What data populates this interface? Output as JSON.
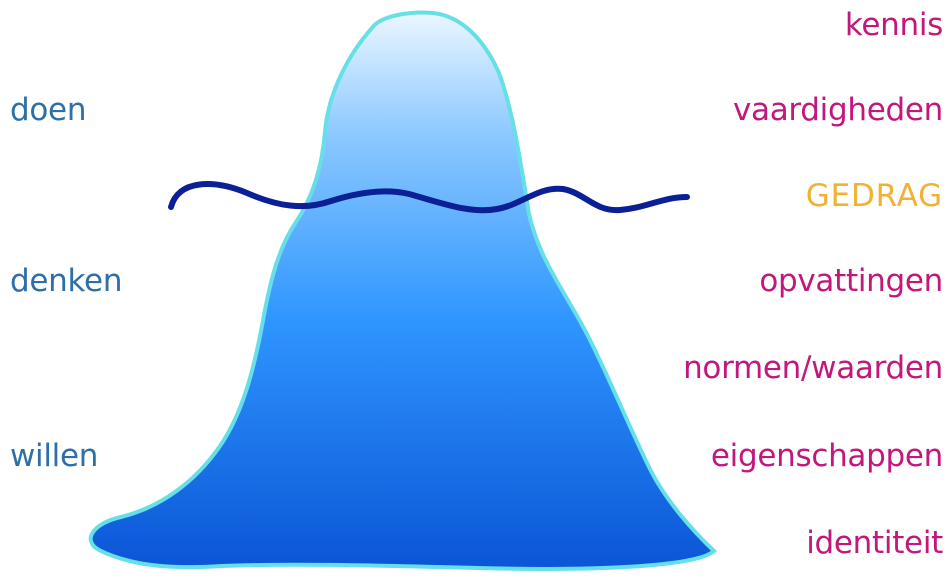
{
  "diagram": {
    "left_labels": [
      {
        "text": "doen"
      },
      {
        "text": "denken"
      },
      {
        "text": "willen"
      }
    ],
    "right_labels": [
      {
        "text": "kennis"
      },
      {
        "text": "vaardigheden"
      },
      {
        "text": "GEDRAG"
      },
      {
        "text": "opvattingen"
      },
      {
        "text": "normen/waarden"
      },
      {
        "text": "eigenschappen"
      },
      {
        "text": "identiteit"
      }
    ],
    "colors": {
      "left_text": "#2f6fa8",
      "right_text": "#c2187c",
      "behavior_text": "#f0b233",
      "outline": "#66e0e6",
      "water_line": "#0b1f97"
    }
  }
}
